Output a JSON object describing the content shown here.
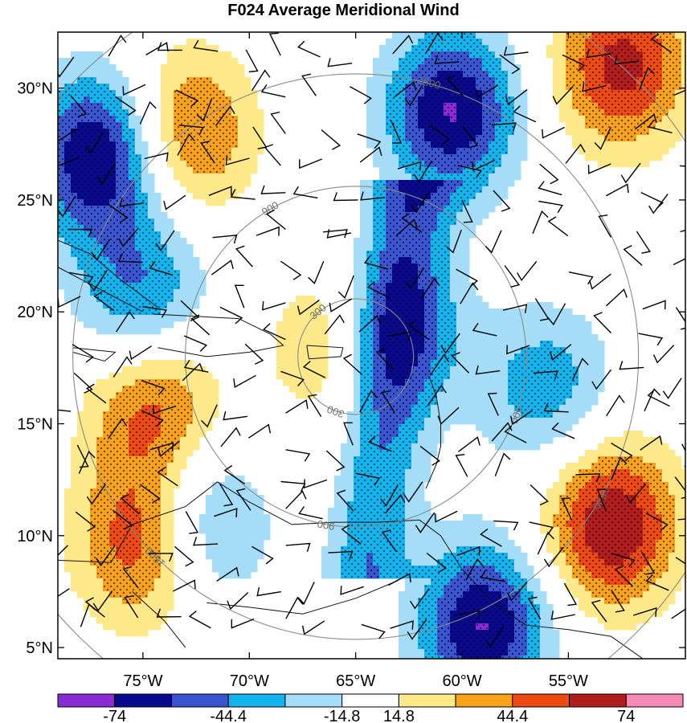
{
  "title": "F024 Average Meridional Wind",
  "axes": {
    "lat_labels": [
      "30°N",
      "25°N",
      "20°N",
      "15°N",
      "10°N",
      "5°N"
    ],
    "lon_labels": [
      "75°W",
      "70°W",
      "65°W",
      "60°W",
      "55°W"
    ]
  },
  "range_rings": {
    "labels": [
      "300",
      "900",
      "1500"
    ]
  },
  "colorbar": {
    "tick_labels": [
      "-74",
      "-44.4",
      "-14.8",
      "14.8",
      "44.4",
      "74"
    ],
    "colors": [
      "#8b2bd6",
      "#0a0a8f",
      "#3b54d0",
      "#10b4ee",
      "#a5dcf8",
      "#ffffff",
      "#fde88a",
      "#f7a21a",
      "#ee4a13",
      "#b31d1d",
      "#f58ab8"
    ]
  },
  "chart_data": {
    "type": "heatmap",
    "title": "F024 Average Meridional Wind",
    "x_range": [
      -79,
      -49.5
    ],
    "y_range": [
      4.5,
      32.5
    ],
    "x_ticks": [
      -75,
      -70,
      -65,
      -60,
      -55
    ],
    "y_ticks": [
      30,
      25,
      20,
      15,
      10,
      5
    ],
    "contour_levels": [
      -74,
      -59.2,
      -44.4,
      -29.6,
      -14.8,
      0,
      14.8,
      29.6,
      44.4,
      59.2,
      74
    ],
    "features": [
      {
        "sign": "negative",
        "peak": -80,
        "lon": -77.0,
        "lat": 27.0
      },
      {
        "sign": "negative",
        "peak": -50,
        "lon": -75.0,
        "lat": 20.5
      },
      {
        "sign": "negative",
        "peak": -75,
        "lon": -60.5,
        "lat": 29.0
      },
      {
        "sign": "negative",
        "peak": -45,
        "lon": -63.0,
        "lat": 19.0
      },
      {
        "sign": "negative",
        "peak": -40,
        "lon": -56.0,
        "lat": 16.5
      },
      {
        "sign": "negative",
        "peak": -75,
        "lon": -59.0,
        "lat": 6.0
      },
      {
        "sign": "negative",
        "peak": -55,
        "lon": -72.5,
        "lat": 10.5
      },
      {
        "sign": "positive",
        "peak": 55,
        "lon": -73.0,
        "lat": 28.0
      },
      {
        "sign": "positive",
        "peak": 65,
        "lon": -52.5,
        "lat": 31.0
      },
      {
        "sign": "positive",
        "peak": 55,
        "lon": -74.5,
        "lat": 16.0
      },
      {
        "sign": "positive",
        "peak": 70,
        "lon": -74.8,
        "lat": 9.8
      },
      {
        "sign": "positive",
        "peak": 75,
        "lon": -53.0,
        "lat": 10.5
      },
      {
        "sign": "positive",
        "peak": 35,
        "lon": -66.0,
        "lat": 18.5
      }
    ],
    "range_ring_center": {
      "lon": -65.0,
      "lat": 18.0
    }
  }
}
